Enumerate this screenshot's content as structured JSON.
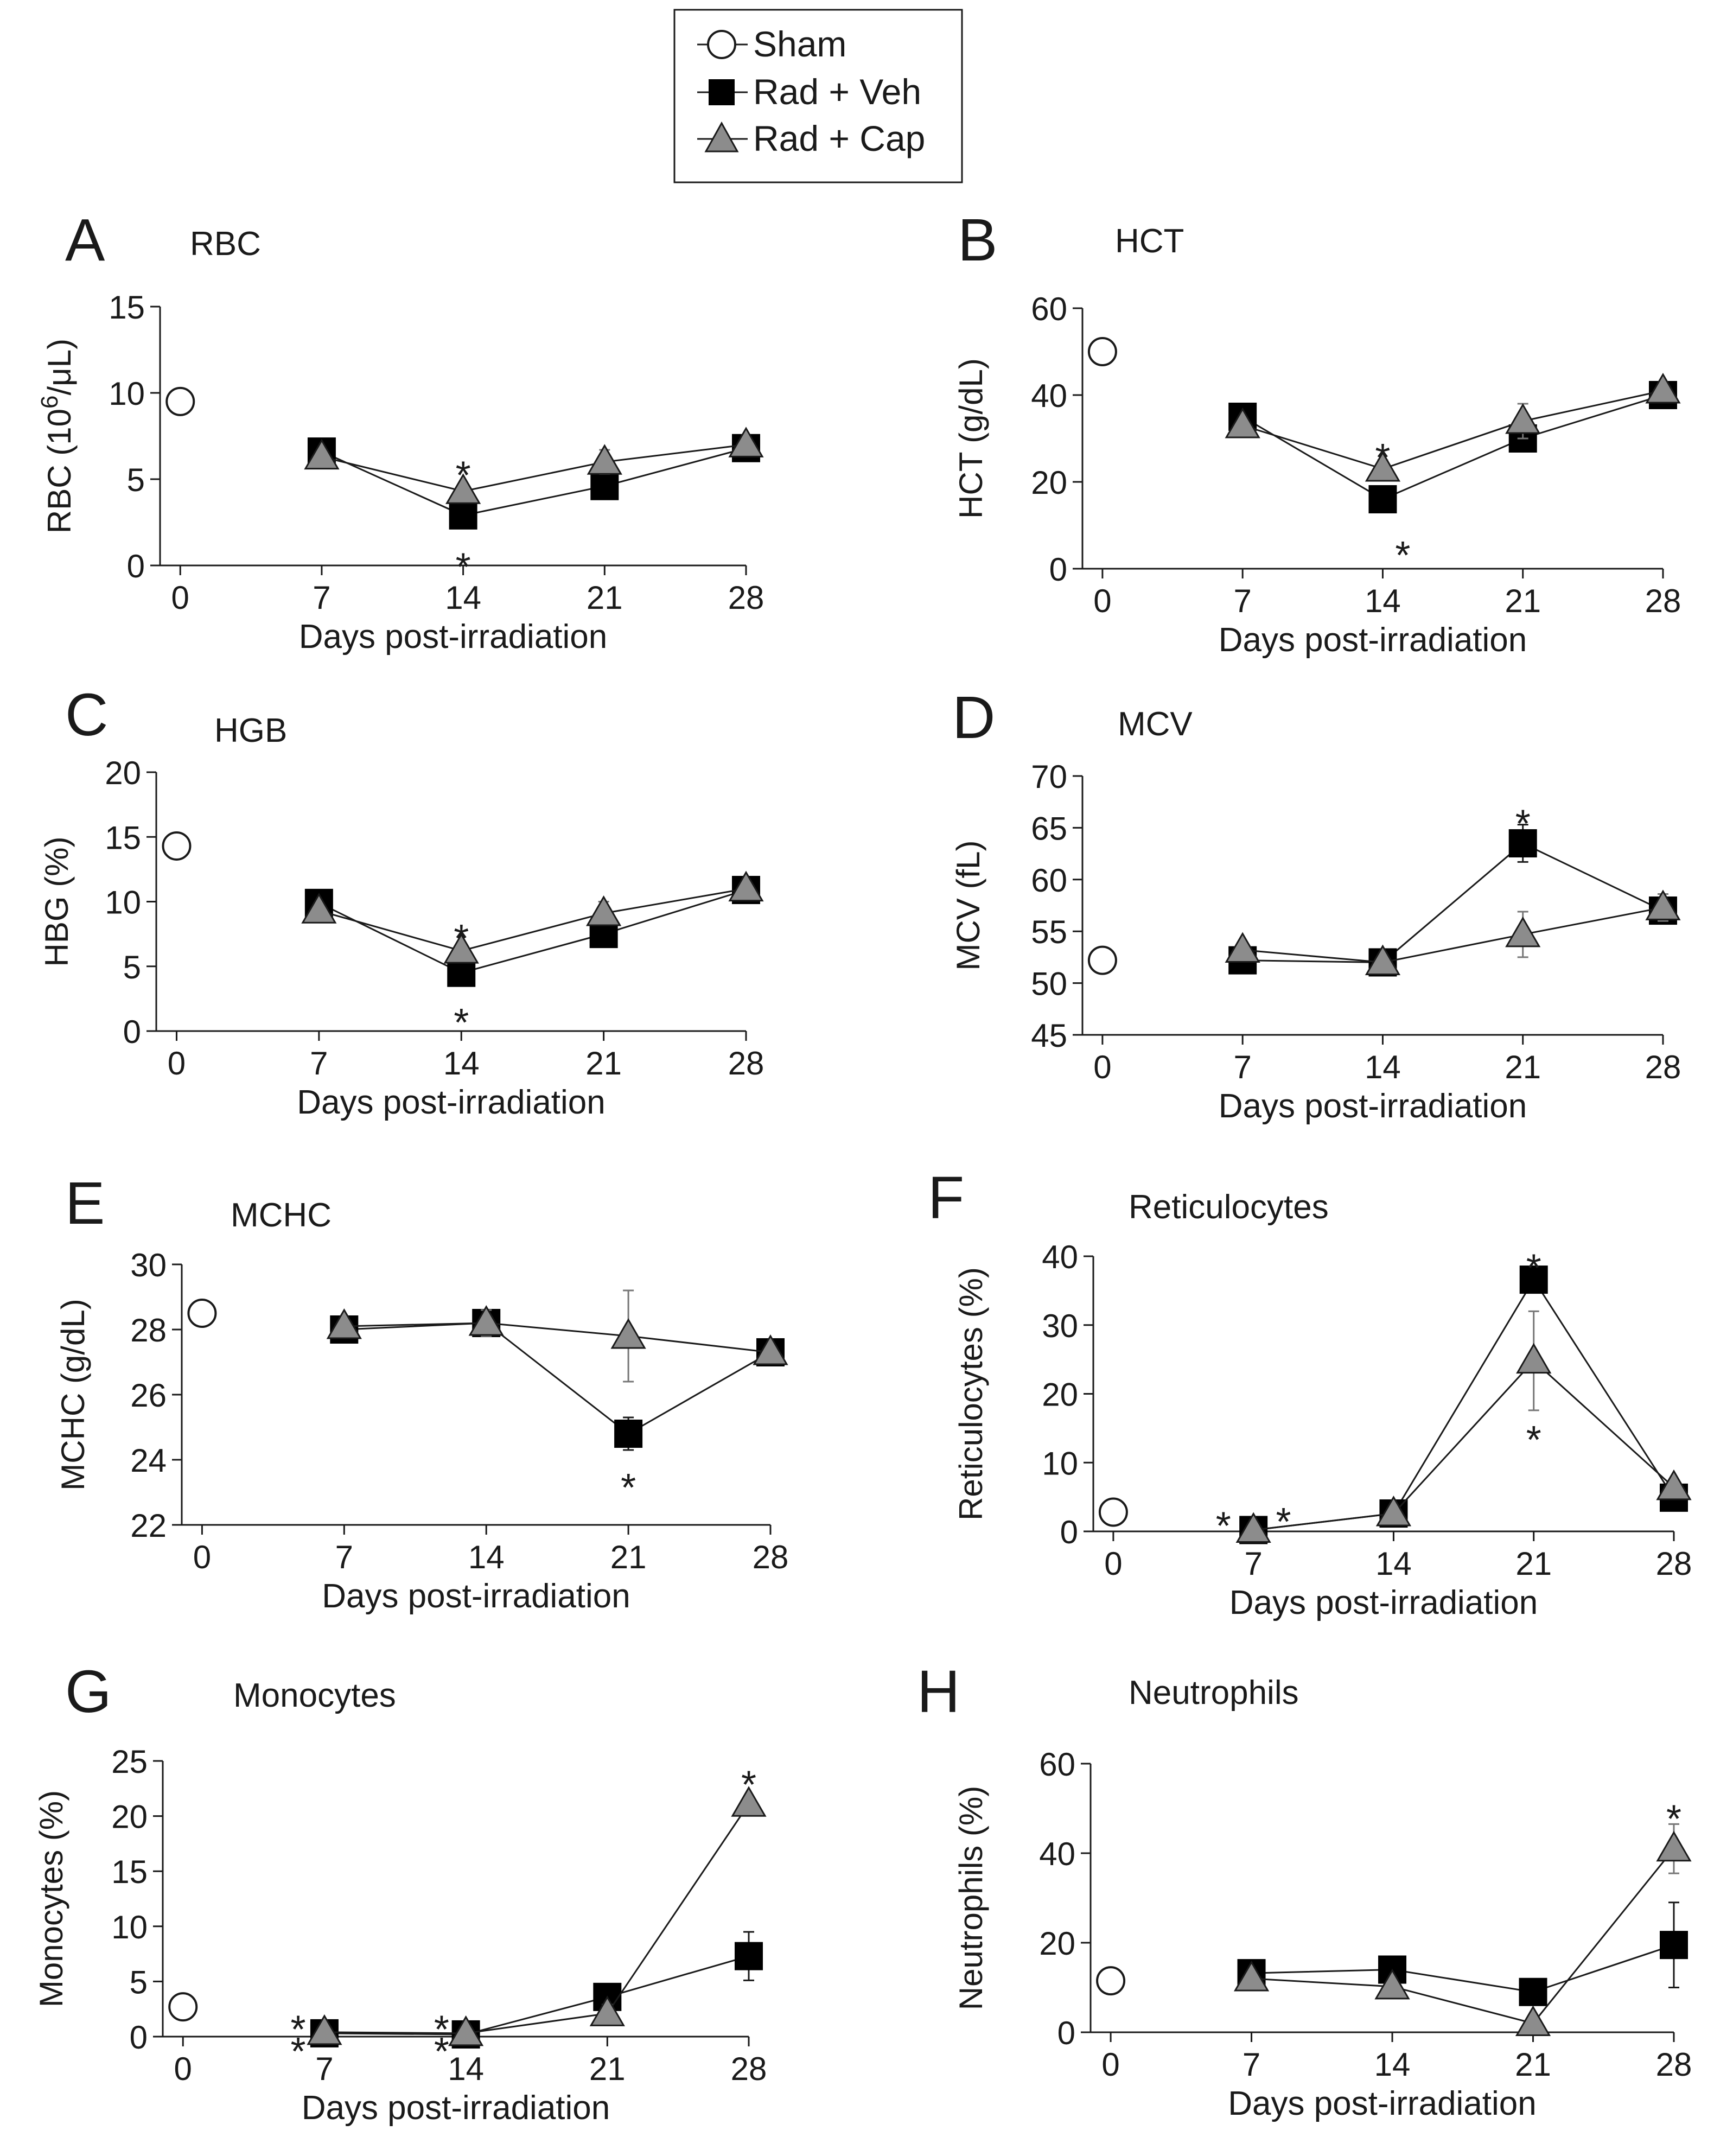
{
  "legend": {
    "entries": [
      {
        "label": "Sham",
        "marker": "circle-open"
      },
      {
        "label": "Rad + Veh",
        "marker": "square-filled"
      },
      {
        "label": "Rad + Cap",
        "marker": "triangle-gray"
      }
    ]
  },
  "colors": {
    "veh": "#000000",
    "cap": "#8c8c8c",
    "line": "#1a1a1a",
    "sham_fill": "#ffffff"
  },
  "chart_data": [
    {
      "panel": "A",
      "type": "line",
      "title": "RBC",
      "xlabel": "Days post-irradiation",
      "ylabel": "RBC (10^6/μL)",
      "ylabel_main": "RBC (10",
      "ylabel_sup": "6",
      "ylabel_tail": "/μL)",
      "ylim": [
        0,
        15
      ],
      "yticks": [
        0,
        5,
        10,
        15
      ],
      "xticks": [
        0,
        7,
        14,
        21,
        28
      ],
      "sham": {
        "x": 0,
        "y": 9.5
      },
      "series": [
        {
          "name": "Rad + Veh",
          "x": [
            7,
            14,
            21,
            28
          ],
          "y": [
            6.6,
            2.9,
            4.6,
            6.8
          ],
          "err": [
            0.3,
            0.3,
            0.3,
            0.3
          ]
        },
        {
          "name": "Rad + Cap",
          "x": [
            7,
            14,
            21,
            28
          ],
          "y": [
            6.3,
            4.3,
            6.0,
            7.0
          ],
          "err": [
            0.3,
            0.3,
            0.7,
            0.3
          ]
        }
      ],
      "annotations": [
        {
          "text": "*",
          "x": 14,
          "y": 5.7
        },
        {
          "text": "*",
          "x": 14,
          "y": 0.4
        }
      ]
    },
    {
      "panel": "B",
      "type": "line",
      "title": "HCT",
      "xlabel": "Days post-irradiation",
      "ylabel": "HCT (g/dL)",
      "ylim": [
        0,
        60
      ],
      "yticks": [
        0,
        20,
        40,
        60
      ],
      "xticks": [
        0,
        7,
        14,
        21,
        28
      ],
      "sham": {
        "x": 0,
        "y": 50
      },
      "series": [
        {
          "name": "Rad + Veh",
          "x": [
            7,
            14,
            21,
            28
          ],
          "y": [
            35,
            16,
            30,
            40
          ],
          "err": [
            1,
            3,
            1,
            1
          ]
        },
        {
          "name": "Rad + Cap",
          "x": [
            7,
            14,
            21,
            28
          ],
          "y": [
            33,
            23,
            34,
            41
          ],
          "err": [
            1,
            2,
            4,
            1
          ]
        }
      ],
      "annotations": [
        {
          "text": "*",
          "x": 14,
          "y": 27.5
        },
        {
          "text": "*",
          "x": 15,
          "y": 5
        }
      ]
    },
    {
      "panel": "C",
      "type": "line",
      "title": "HGB",
      "xlabel": "Days post-irradiation",
      "ylabel": "HBG (%)",
      "ylim": [
        0,
        20
      ],
      "yticks": [
        0,
        5,
        10,
        15,
        20
      ],
      "xticks": [
        0,
        7,
        14,
        21,
        28
      ],
      "sham": {
        "x": 0,
        "y": 14.3
      },
      "series": [
        {
          "name": "Rad + Veh",
          "x": [
            7,
            14,
            21,
            28
          ],
          "y": [
            9.9,
            4.5,
            7.5,
            10.9
          ],
          "err": [
            0.3,
            0.3,
            0.3,
            0.3
          ]
        },
        {
          "name": "Rad + Cap",
          "x": [
            7,
            14,
            21,
            28
          ],
          "y": [
            9.3,
            6.2,
            9.1,
            11.0
          ],
          "err": [
            0.3,
            0.3,
            0.9,
            0.3
          ]
        }
      ],
      "annotations": [
        {
          "text": "*",
          "x": 14,
          "y": 7.8
        },
        {
          "text": "*",
          "x": 14,
          "y": 1.3
        }
      ]
    },
    {
      "panel": "D",
      "type": "line",
      "title": "MCV",
      "xlabel": "Days post-irradiation",
      "ylabel": "MCV (fL)",
      "ylim": [
        45,
        70
      ],
      "yticks": [
        45,
        50,
        55,
        60,
        65,
        70
      ],
      "xticks": [
        0,
        7,
        14,
        21,
        28
      ],
      "sham": {
        "x": 0,
        "y": 52.2
      },
      "series": [
        {
          "name": "Rad + Veh",
          "x": [
            7,
            14,
            21,
            28
          ],
          "y": [
            52.2,
            52.0,
            63.5,
            57.0
          ],
          "err": [
            0.3,
            0.3,
            1.8,
            1.2
          ]
        },
        {
          "name": "Rad + Cap",
          "x": [
            7,
            14,
            21,
            28
          ],
          "y": [
            53.2,
            52.0,
            54.7,
            57.3
          ],
          "err": [
            0.3,
            0.3,
            2.2,
            1.3
          ]
        }
      ],
      "annotations": [
        {
          "text": "*",
          "x": 21,
          "y": 66.2
        }
      ]
    },
    {
      "panel": "E",
      "type": "line",
      "title": "MCHC",
      "xlabel": "Days post-irradiation",
      "ylabel": "MCHC (g/dL)",
      "ylim": [
        22,
        30
      ],
      "yticks": [
        22,
        24,
        26,
        28,
        30
      ],
      "xticks": [
        0,
        7,
        14,
        21,
        28
      ],
      "sham": {
        "x": 0,
        "y": 28.5
      },
      "series": [
        {
          "name": "Rad + Veh",
          "x": [
            7,
            14,
            21,
            28
          ],
          "y": [
            28.0,
            28.2,
            24.8,
            27.3
          ],
          "err": [
            0.1,
            0.4,
            0.5,
            0.2
          ]
        },
        {
          "name": "Rad + Cap",
          "x": [
            7,
            14,
            21,
            28
          ],
          "y": [
            28.1,
            28.2,
            27.8,
            27.3
          ],
          "err": [
            0.1,
            0.4,
            1.4,
            0.2
          ]
        }
      ],
      "annotations": [
        {
          "text": "*",
          "x": 21,
          "y": 23.4
        }
      ]
    },
    {
      "panel": "F",
      "type": "line",
      "title": "Reticulocytes",
      "xlabel": "Days post-irradiation",
      "ylabel": "Reticulocytes (%)",
      "ylim": [
        0,
        40
      ],
      "yticks": [
        0,
        10,
        20,
        30,
        40
      ],
      "xticks": [
        0,
        7,
        14,
        21,
        28
      ],
      "sham": {
        "x": 0,
        "y": 2.8
      },
      "series": [
        {
          "name": "Rad + Veh",
          "x": [
            7,
            14,
            21,
            28
          ],
          "y": [
            0.2,
            2.6,
            36.6,
            4.9
          ],
          "err": [
            0.2,
            0.3,
            0.8,
            0.8
          ]
        },
        {
          "name": "Rad + Cap",
          "x": [
            7,
            14,
            21,
            28
          ],
          "y": [
            0.2,
            2.6,
            24.8,
            6.4
          ],
          "err": [
            0.2,
            0.3,
            7.2,
            1.0
          ]
        }
      ],
      "annotations": [
        {
          "text": "*",
          "x": 5.5,
          "y": 2.0
        },
        {
          "text": "*",
          "x": 8.5,
          "y": 2.6
        },
        {
          "text": "*",
          "x": 21,
          "y": 39.5
        },
        {
          "text": "*",
          "x": 21,
          "y": 14.5
        }
      ]
    },
    {
      "panel": "G",
      "type": "line",
      "title": "Monocytes",
      "xlabel": "Days post-irradiation",
      "ylabel": "Monocytes (%)",
      "ylim": [
        0,
        25
      ],
      "yticks": [
        0,
        5,
        10,
        15,
        20,
        25
      ],
      "xticks": [
        0,
        7,
        14,
        21,
        28
      ],
      "sham": {
        "x": 0,
        "y": 2.7
      },
      "series": [
        {
          "name": "Rad + Veh",
          "x": [
            7,
            14,
            21,
            28
          ],
          "y": [
            0.3,
            0.2,
            3.6,
            7.3
          ],
          "err": [
            0.2,
            0.2,
            0.8,
            2.2
          ]
        },
        {
          "name": "Rad + Cap",
          "x": [
            7,
            14,
            21,
            28
          ],
          "y": [
            0.4,
            0.3,
            2.1,
            21.1
          ],
          "err": [
            0.2,
            0.2,
            0.8,
            0.6
          ]
        }
      ],
      "annotations": [
        {
          "text": "*",
          "x": 5.7,
          "y": 1.4
        },
        {
          "text": "*",
          "x": 5.7,
          "y": -0.6
        },
        {
          "text": "*",
          "x": 12.8,
          "y": 1.4
        },
        {
          "text": "*",
          "x": 12.8,
          "y": -0.6
        },
        {
          "text": "*",
          "x": 28,
          "y": 23.6
        }
      ]
    },
    {
      "panel": "H",
      "type": "line",
      "title": "Neutrophils",
      "xlabel": "Days post-irradiation",
      "ylabel": "Neutrophils (%)",
      "ylim": [
        0,
        60
      ],
      "yticks": [
        0,
        20,
        40,
        60
      ],
      "xticks": [
        0,
        7,
        14,
        21,
        28
      ],
      "sham": {
        "x": 0,
        "y": 11.5
      },
      "series": [
        {
          "name": "Rad + Veh",
          "x": [
            7,
            14,
            21,
            28
          ],
          "y": [
            13.2,
            14.0,
            9.0,
            19.5
          ],
          "err": [
            1.0,
            1.0,
            1.5,
            9.5
          ]
        },
        {
          "name": "Rad + Cap",
          "x": [
            7,
            14,
            21,
            28
          ],
          "y": [
            12.0,
            10.2,
            2.0,
            41.0
          ],
          "err": [
            1.0,
            1.0,
            1.5,
            5.5
          ]
        }
      ],
      "annotations": [
        {
          "text": "*",
          "x": 28,
          "y": 49.5
        }
      ]
    }
  ]
}
